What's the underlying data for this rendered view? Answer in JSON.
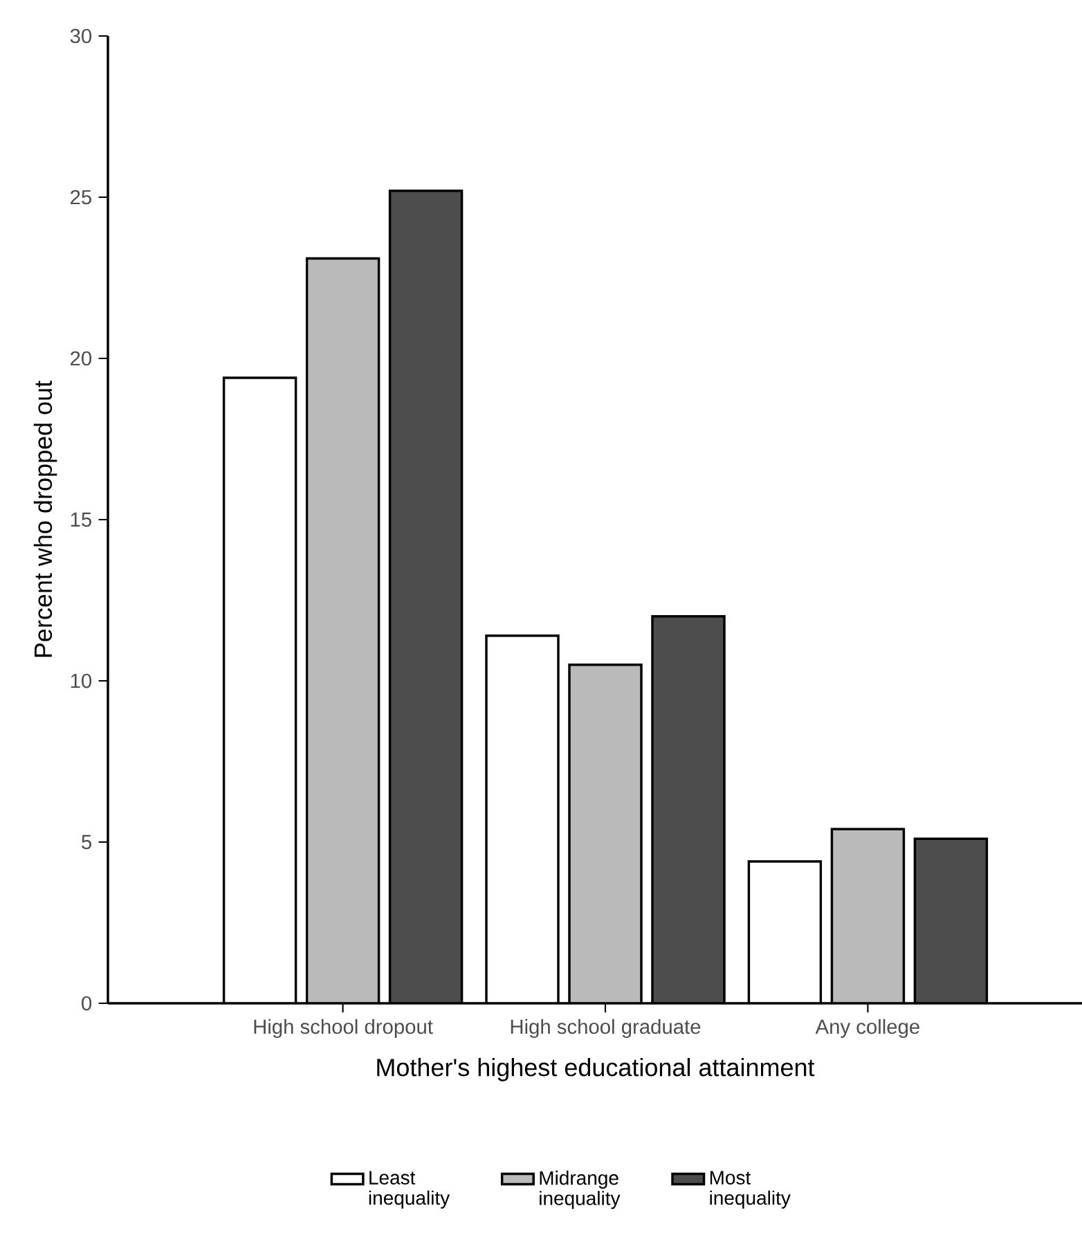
{
  "chart_data": {
    "type": "bar",
    "xlabel": "Mother's highest educational attainment",
    "ylabel": "Percent who dropped out",
    "categories": [
      "High school dropout",
      "High school graduate",
      "Any college"
    ],
    "series": [
      {
        "name": "Least inequality",
        "color": "#ffffff",
        "values": [
          19.4,
          11.4,
          4.4
        ]
      },
      {
        "name": "Midrange inequality",
        "color": "#bababa",
        "values": [
          23.1,
          10.5,
          5.4
        ]
      },
      {
        "name": "Most inequality",
        "color": "#4d4d4d",
        "values": [
          25.2,
          12.0,
          5.1
        ]
      }
    ],
    "ylim": [
      0,
      30
    ],
    "yticks": [
      0,
      5,
      10,
      15,
      20,
      25,
      30
    ],
    "legend": "bottom"
  }
}
